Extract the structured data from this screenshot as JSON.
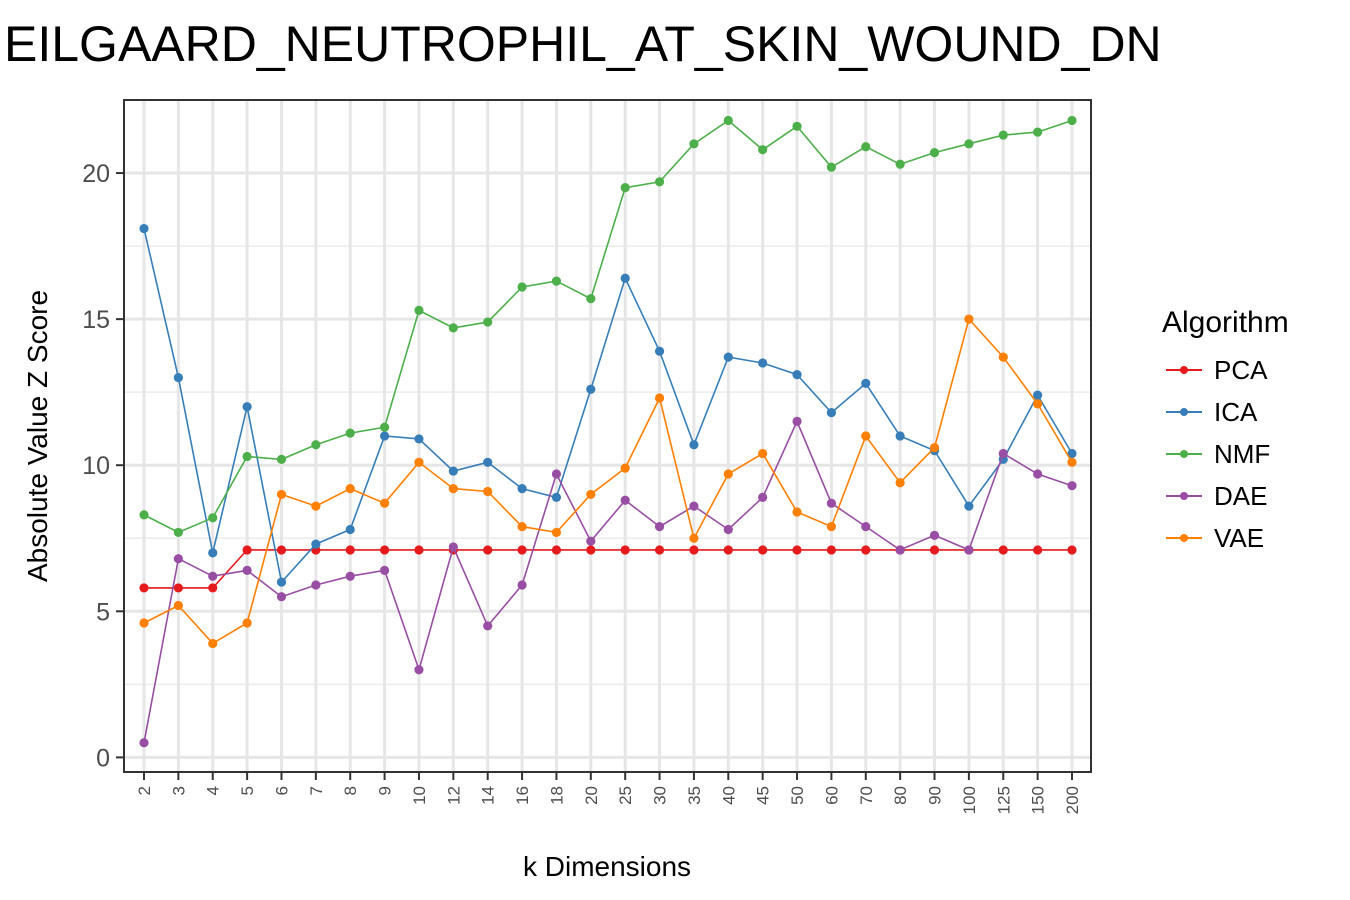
{
  "chart_data": {
    "type": "line",
    "title": "EILGAARD_NEUTROPHIL_AT_SKIN_WOUND_DN",
    "xlabel": "k Dimensions",
    "ylabel": "Absolute Value Z Score",
    "ylim": [
      -0.5,
      22.5
    ],
    "yticks": [
      0,
      5,
      10,
      15,
      20
    ],
    "grid": true,
    "legend_title": "Algorithm",
    "legend_position": "right",
    "categories": [
      "2",
      "3",
      "4",
      "5",
      "6",
      "7",
      "8",
      "9",
      "10",
      "12",
      "14",
      "16",
      "18",
      "20",
      "25",
      "30",
      "35",
      "40",
      "45",
      "50",
      "60",
      "70",
      "80",
      "90",
      "100",
      "125",
      "150",
      "200"
    ],
    "series": [
      {
        "name": "PCA",
        "color": "#e41a1c",
        "values": [
          5.8,
          5.8,
          5.8,
          7.1,
          7.1,
          7.1,
          7.1,
          7.1,
          7.1,
          7.1,
          7.1,
          7.1,
          7.1,
          7.1,
          7.1,
          7.1,
          7.1,
          7.1,
          7.1,
          7.1,
          7.1,
          7.1,
          7.1,
          7.1,
          7.1,
          7.1,
          7.1,
          7.1
        ]
      },
      {
        "name": "ICA",
        "color": "#377eb8",
        "values": [
          18.1,
          13.0,
          7.0,
          12.0,
          6.0,
          7.3,
          7.8,
          11.0,
          10.9,
          9.8,
          10.1,
          9.2,
          8.9,
          12.6,
          16.4,
          13.9,
          10.7,
          13.7,
          13.5,
          13.1,
          11.8,
          12.8,
          11.0,
          10.5,
          8.6,
          10.2,
          12.4,
          10.4
        ]
      },
      {
        "name": "NMF",
        "color": "#4daf4a",
        "values": [
          8.3,
          7.7,
          8.2,
          10.3,
          10.2,
          10.7,
          11.1,
          11.3,
          15.3,
          14.7,
          14.9,
          16.1,
          16.3,
          15.7,
          19.5,
          19.7,
          21.0,
          21.8,
          20.8,
          21.6,
          20.2,
          20.9,
          20.3,
          20.7,
          21.0,
          21.3,
          21.4,
          21.8
        ]
      },
      {
        "name": "DAE",
        "color": "#984ea3",
        "values": [
          0.5,
          6.8,
          6.2,
          6.4,
          5.5,
          5.9,
          6.2,
          6.4,
          3.0,
          7.2,
          4.5,
          5.9,
          9.7,
          7.4,
          8.8,
          7.9,
          8.6,
          7.8,
          8.9,
          11.5,
          8.7,
          7.9,
          7.1,
          7.6,
          7.1,
          10.4,
          9.7,
          9.3
        ]
      },
      {
        "name": "VAE",
        "color": "#ff7f00",
        "values": [
          4.6,
          5.2,
          3.9,
          4.6,
          9.0,
          8.6,
          9.2,
          8.7,
          10.1,
          9.2,
          9.1,
          7.9,
          7.7,
          9.0,
          9.9,
          12.3,
          7.5,
          9.7,
          10.4,
          8.4,
          7.9,
          11.0,
          9.4,
          10.6,
          15.0,
          13.7,
          12.1,
          10.1
        ]
      }
    ]
  }
}
